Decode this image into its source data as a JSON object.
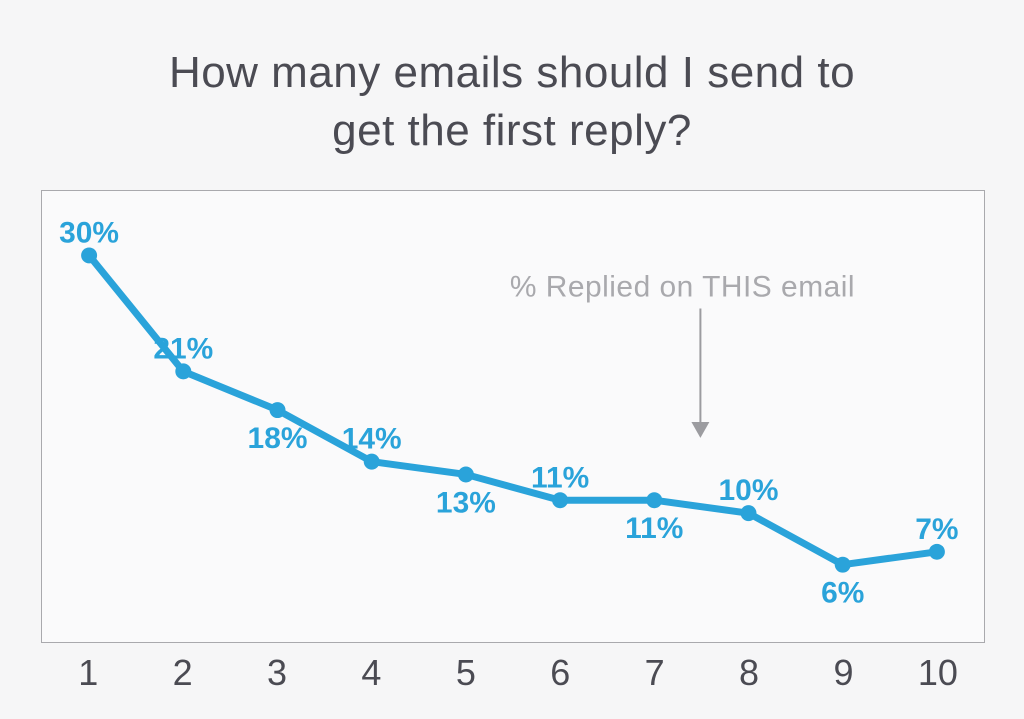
{
  "page": {
    "background_color": "#f6f6f7",
    "accent_color": "#2aa3da"
  },
  "title": {
    "lines": [
      "How many emails should I send to",
      "get the first reply?"
    ]
  },
  "chart_data": {
    "type": "line",
    "title": "How many emails should I send to get the first reply?",
    "xlabel": "",
    "ylabel": "",
    "x": [
      1,
      2,
      3,
      4,
      5,
      6,
      7,
      8,
      9,
      10
    ],
    "categories": [
      "1",
      "2",
      "3",
      "4",
      "5",
      "6",
      "7",
      "8",
      "9",
      "10"
    ],
    "series": [
      {
        "name": "% Replied on THIS email",
        "values": [
          30,
          21,
          18,
          14,
          13,
          11,
          11,
          10,
          6,
          7
        ],
        "point_labels": [
          "30%",
          "21%",
          "18%",
          "14%",
          "13%",
          "11%",
          "11%",
          "10%",
          "6%",
          "7%"
        ],
        "label_positions": [
          "above",
          "above",
          "below",
          "above",
          "below",
          "above",
          "below",
          "above",
          "below",
          "above"
        ]
      }
    ],
    "ylim": [
      0,
      35
    ],
    "grid": false,
    "legend_position": "none",
    "line_color": "#2aa3da",
    "marker_color": "#2aa3da",
    "label_color": "#2aa3da",
    "axis_text_color": "#4b4b53",
    "annotation": {
      "text": "% Replied on THIS email",
      "text_color": "#a9a9ad",
      "arrow_icon": "down-arrow-icon",
      "arrow_color": "#9c9ca0",
      "points_between_x": [
        7,
        8
      ]
    }
  }
}
